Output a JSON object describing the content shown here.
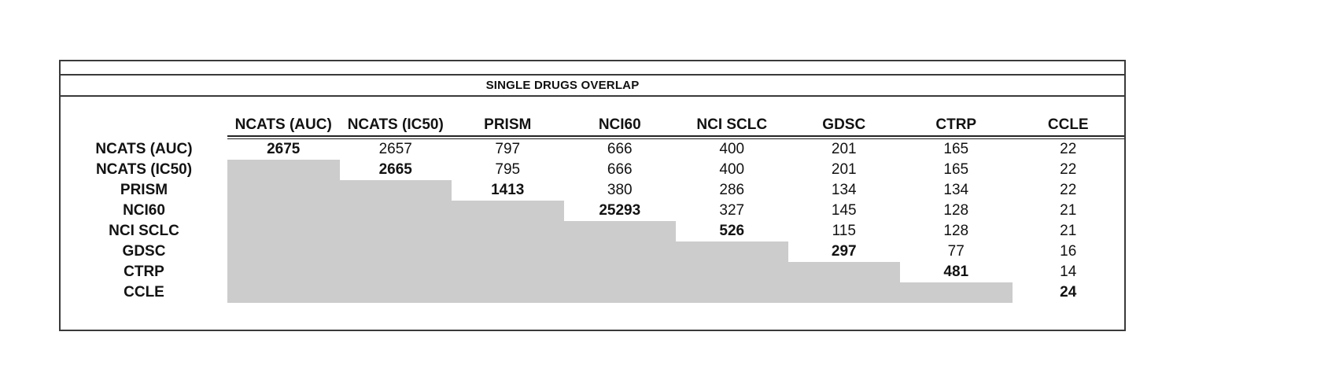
{
  "title": "SINGLE DRUGS OVERLAP",
  "colors": {
    "shaded_cell": "#cccccc",
    "rule_line": "#3a3a3a",
    "text": "#121212",
    "background": "#ffffff"
  },
  "chart_data": {
    "type": "table",
    "title": "SINGLE DRUGS OVERLAP",
    "columns": [
      "NCATS (AUC)",
      "NCATS (IC50)",
      "PRISM",
      "NCI60",
      "NCI SCLC",
      "GDSC",
      "CTRP",
      "CCLE"
    ],
    "rows": [
      "NCATS (AUC)",
      "NCATS (IC50)",
      "PRISM",
      "NCI60",
      "NCI SCLC",
      "GDSC",
      "CTRP",
      "CCLE"
    ],
    "values": [
      [
        2675,
        2657,
        797,
        666,
        400,
        201,
        165,
        22
      ],
      [
        null,
        2665,
        795,
        666,
        400,
        201,
        165,
        22
      ],
      [
        null,
        null,
        1413,
        380,
        286,
        134,
        134,
        22
      ],
      [
        null,
        null,
        null,
        25293,
        327,
        145,
        128,
        21
      ],
      [
        null,
        null,
        null,
        null,
        526,
        115,
        128,
        21
      ],
      [
        null,
        null,
        null,
        null,
        null,
        297,
        77,
        16
      ],
      [
        null,
        null,
        null,
        null,
        null,
        null,
        481,
        14
      ],
      [
        null,
        null,
        null,
        null,
        null,
        null,
        null,
        24
      ]
    ],
    "layout_hints": {
      "diagonal_bold": true,
      "lower_triangle_shaded": true,
      "header_double_underline": true
    }
  }
}
